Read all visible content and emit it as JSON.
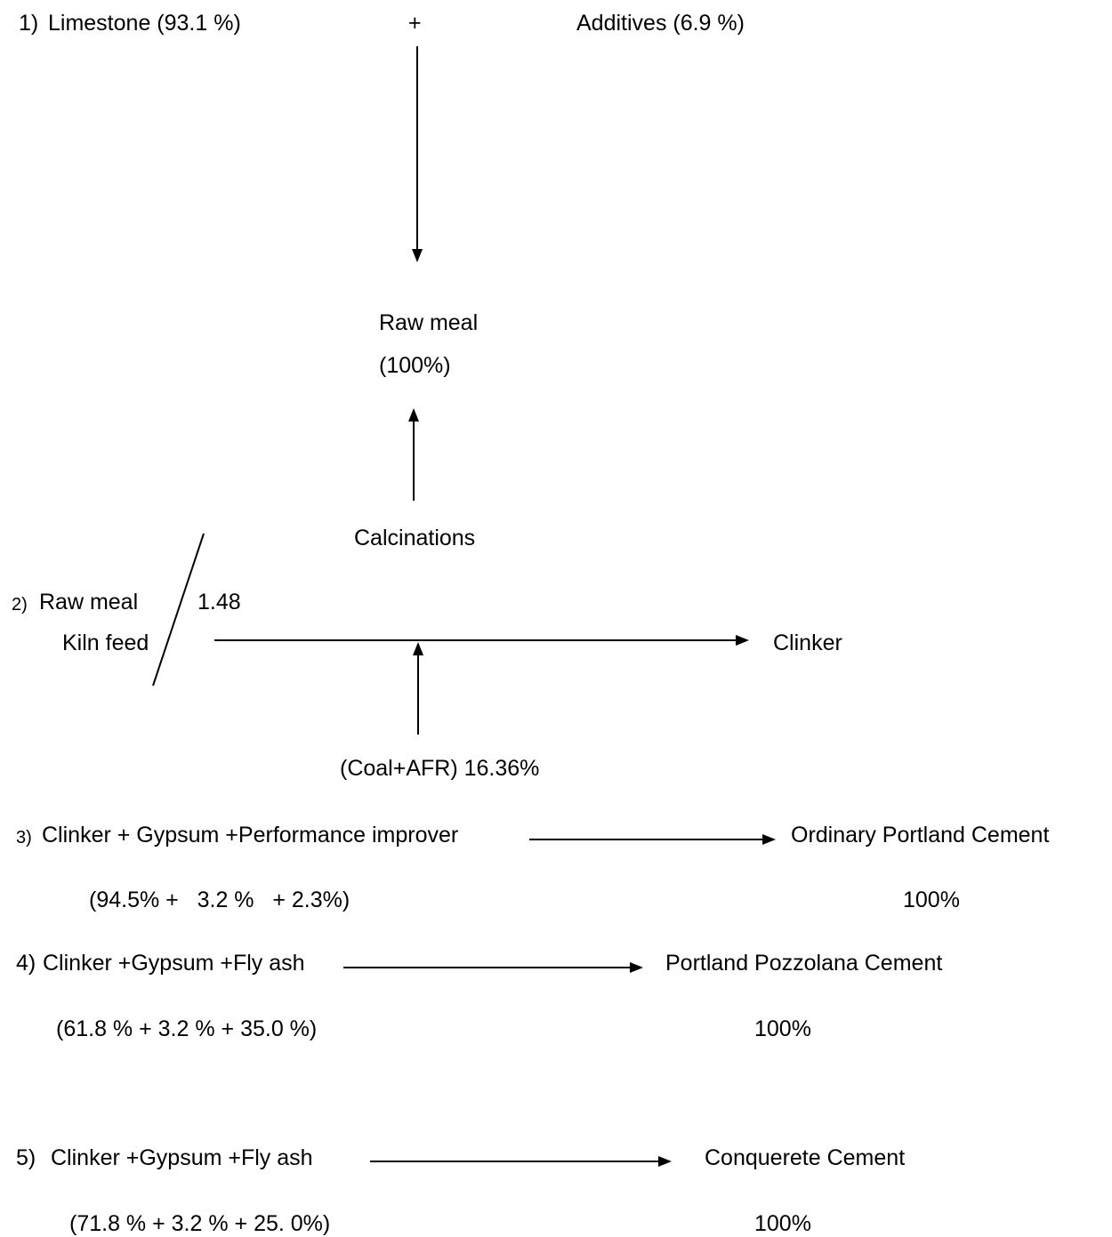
{
  "step1": {
    "number": "1)",
    "left": "Limestone (93.1 %)",
    "plus": "+",
    "right": "Additives (6.9 %)",
    "product_name": "Raw meal",
    "product_pct": "(100%)"
  },
  "step2": {
    "number": "2)",
    "input_top": "Raw meal",
    "input_bottom": "Kiln feed",
    "ratio": "1.48",
    "process": "Calcinations",
    "output": "Clinker",
    "fuel": "(Coal+AFR) 16.36%"
  },
  "step3": {
    "number": "3)",
    "inputs": "Clinker + Gypsum +Performance improver",
    "output": "Ordinary Portland Cement",
    "ratios": "(94.5% +   3.2 %   + 2.3%)",
    "output_pct": "100%"
  },
  "step4": {
    "number": "4)",
    "inputs": "Clinker +Gypsum +Fly ash",
    "output": "Portland Pozzolana Cement",
    "ratios": "(61.8 % + 3.2 % + 35.0 %)",
    "output_pct": "100%"
  },
  "step5": {
    "number": "5)",
    "inputs": "Clinker +Gypsum +Fly ash",
    "output": "Conquerete Cement",
    "ratios": "(71.8 % + 3.2 % + 25. 0%)",
    "output_pct": "100%"
  }
}
